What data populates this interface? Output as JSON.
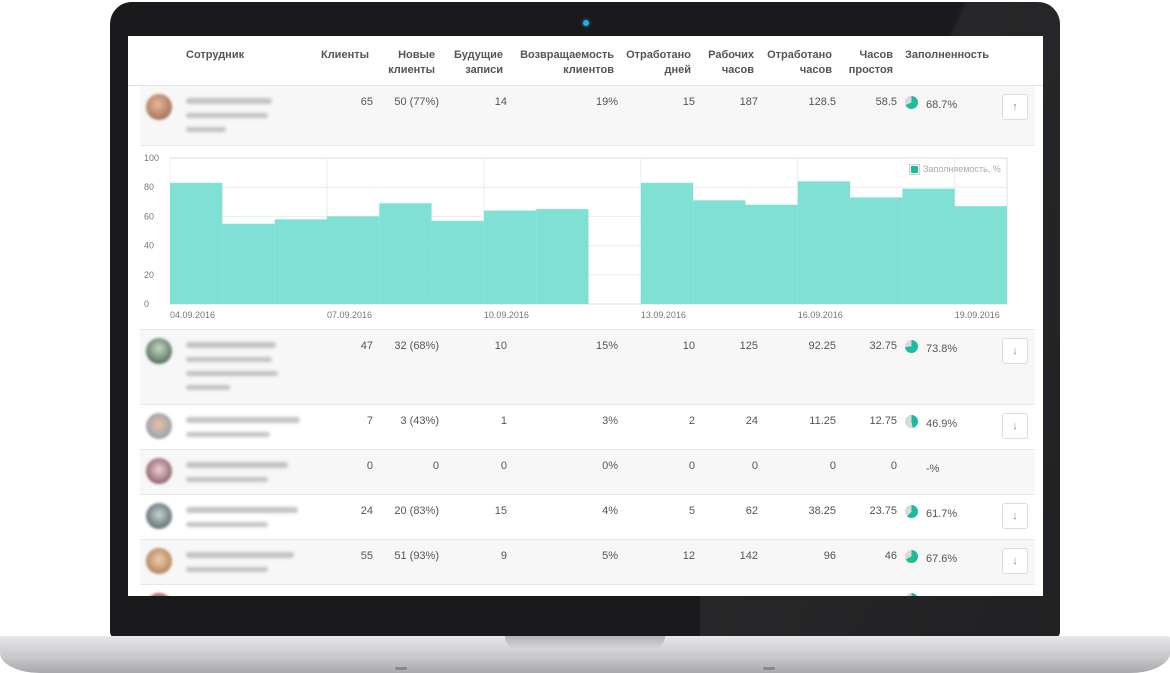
{
  "table": {
    "headers": {
      "employee": "Сотрудник",
      "clients": [
        "Клиенты"
      ],
      "new_clients": [
        "Новые",
        "клиенты"
      ],
      "future_records": [
        "Будущие",
        "записи"
      ],
      "return_rate": [
        "Возвращаемость",
        "клиентов"
      ],
      "days_worked": [
        "Отработано",
        "дней"
      ],
      "work_hours": [
        "Рабочих",
        "часов"
      ],
      "hours_worked": [
        "Отработано",
        "часов"
      ],
      "idle_hours": [
        "Часов",
        "простоя"
      ],
      "occupancy": [
        "Заполненность"
      ]
    },
    "rows": [
      {
        "clients": "65",
        "new_clients": "50 (77%)",
        "future": "14",
        "return": "19%",
        "days": "15",
        "work_hours": "187",
        "hours_worked": "128.5",
        "idle": "58.5",
        "occupancy": "68.7%",
        "occupancy_value": 68.7,
        "toggle": "up-arrow-icon"
      },
      {
        "clients": "47",
        "new_clients": "32 (68%)",
        "future": "10",
        "return": "15%",
        "days": "10",
        "work_hours": "125",
        "hours_worked": "92.25",
        "idle": "32.75",
        "occupancy": "73.8%",
        "occupancy_value": 73.8,
        "toggle": "down-arrow-icon"
      },
      {
        "clients": "7",
        "new_clients": "3 (43%)",
        "future": "1",
        "return": "3%",
        "days": "2",
        "work_hours": "24",
        "hours_worked": "11.25",
        "idle": "12.75",
        "occupancy": "46.9%",
        "occupancy_value": 46.9,
        "toggle": "down-arrow-icon"
      },
      {
        "clients": "0",
        "new_clients": "0",
        "future": "0",
        "return": "0%",
        "days": "0",
        "work_hours": "0",
        "hours_worked": "0",
        "idle": "0",
        "occupancy": "-%",
        "occupancy_value": 0,
        "toggle": ""
      },
      {
        "clients": "24",
        "new_clients": "20 (83%)",
        "future": "15",
        "return": "4%",
        "days": "5",
        "work_hours": "62",
        "hours_worked": "38.25",
        "idle": "23.75",
        "occupancy": "61.7%",
        "occupancy_value": 61.7,
        "toggle": "down-arrow-icon"
      },
      {
        "clients": "55",
        "new_clients": "51 (93%)",
        "future": "9",
        "return": "5%",
        "days": "12",
        "work_hours": "142",
        "hours_worked": "96",
        "idle": "46",
        "occupancy": "67.6%",
        "occupancy_value": 67.6,
        "toggle": "down-arrow-icon"
      }
    ]
  },
  "colors": {
    "accent": "#1abc9c",
    "bar_fill": "#7fe0d3",
    "pie_empty": "#d9d9d9"
  },
  "chart_data": {
    "type": "bar",
    "title": "",
    "xlabel": "",
    "ylabel": "",
    "legend": "Заполняемость, %",
    "legend_position": "top-right",
    "ylim": [
      0,
      100
    ],
    "y_ticks": [
      "0",
      "20",
      "40",
      "60",
      "80",
      "100"
    ],
    "x_tick_labels": [
      "04.09.2016",
      "07.09.2016",
      "10.09.2016",
      "13.09.2016",
      "16.09.2016",
      "19.09.2016"
    ],
    "categories": [
      "04.09.2016",
      "05.09.2016",
      "06.09.2016",
      "07.09.2016",
      "08.09.2016",
      "09.09.2016",
      "10.09.2016",
      "11.09.2016",
      "12.09.2016",
      "13.09.2016",
      "14.09.2016",
      "15.09.2016",
      "16.09.2016",
      "17.09.2016",
      "18.09.2016",
      "19.09.2016"
    ],
    "series": [
      {
        "name": "Заполняемость, %",
        "values": [
          83,
          55,
          58,
          60,
          69,
          57,
          64,
          65,
          0,
          83,
          71,
          68,
          84,
          73,
          79,
          67
        ]
      }
    ],
    "grid": true
  }
}
